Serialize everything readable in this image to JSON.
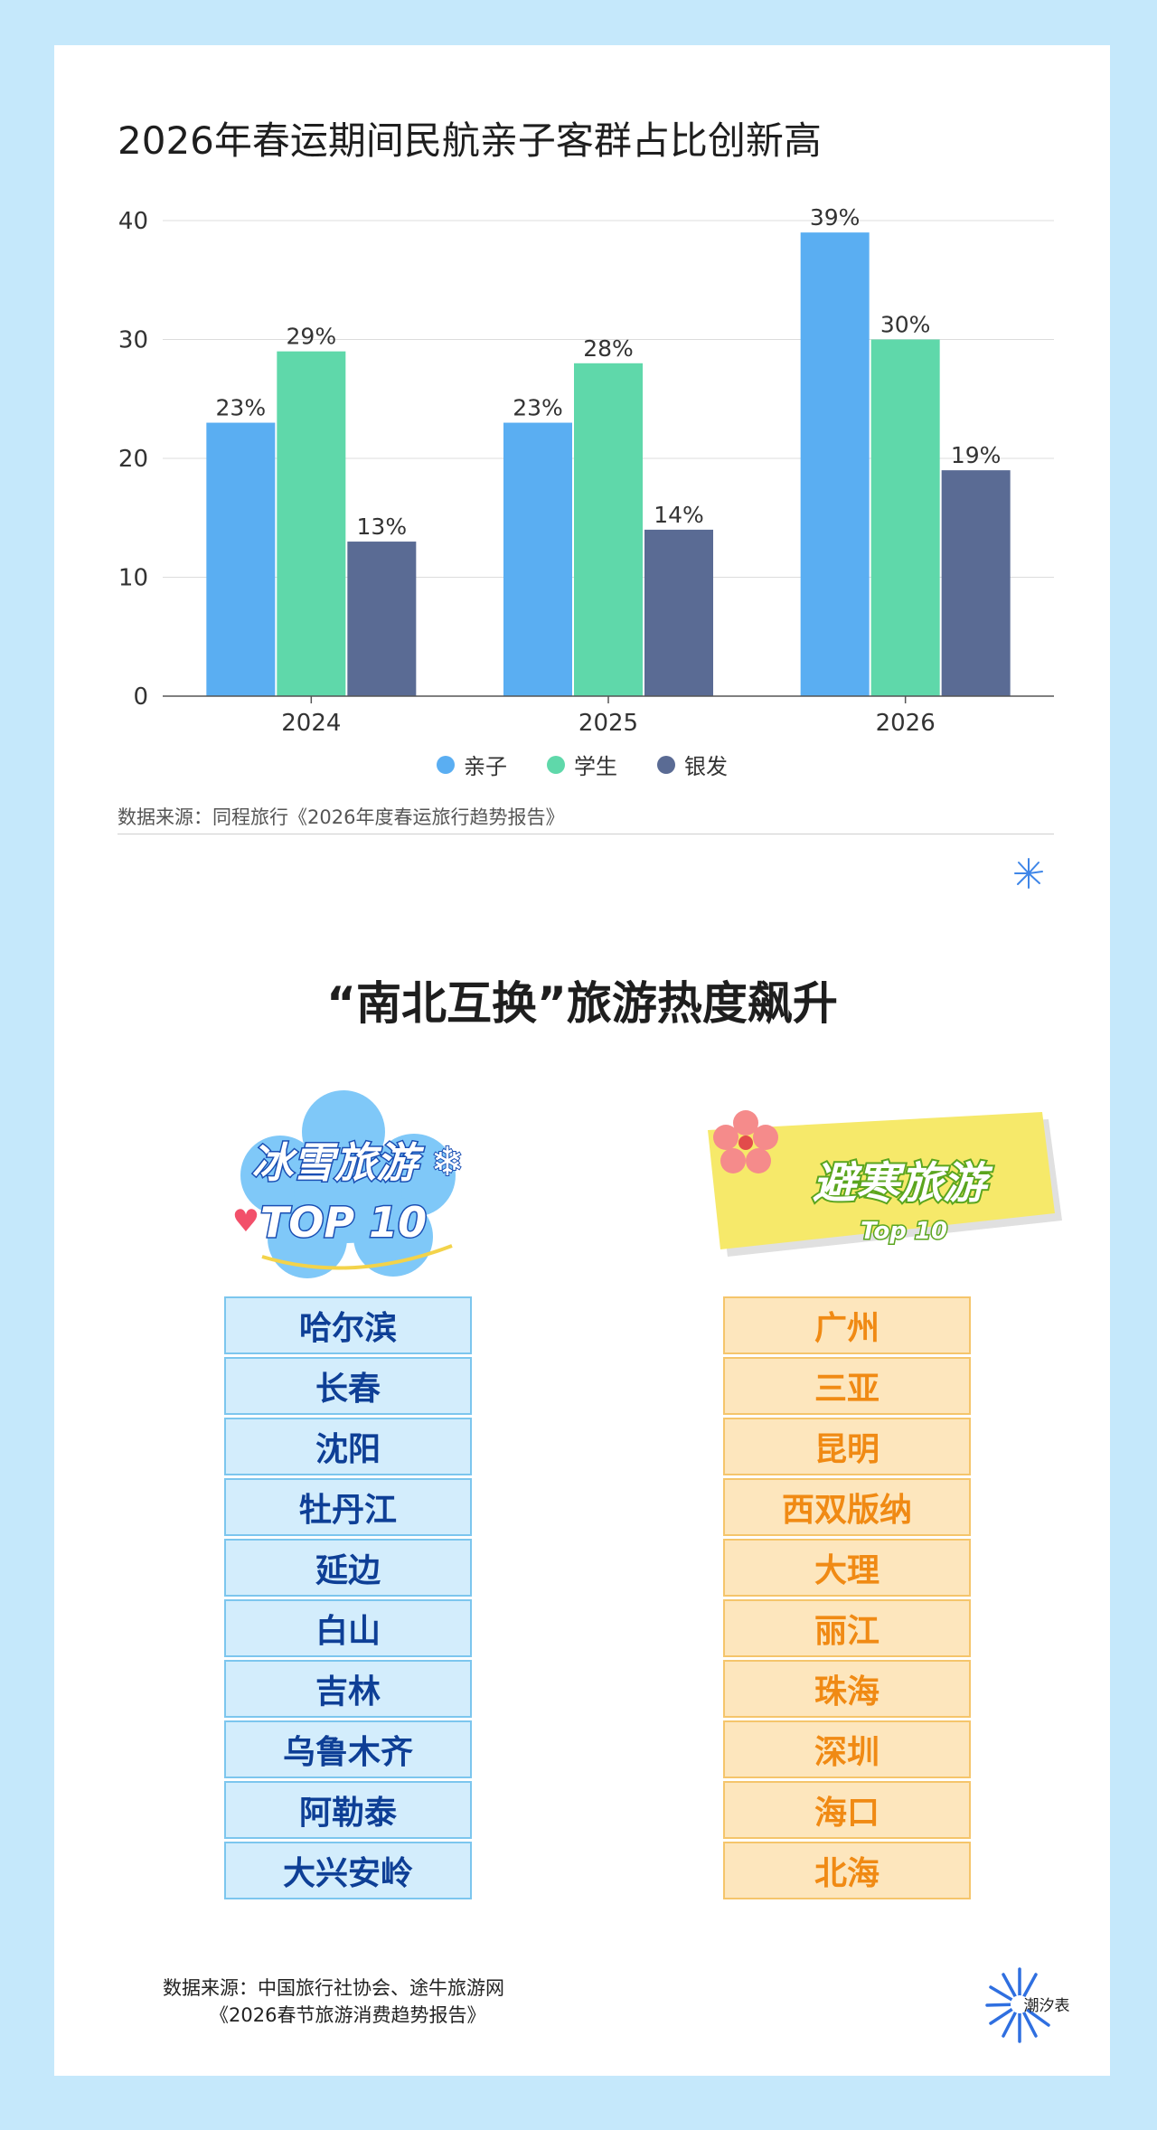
{
  "chart_data": {
    "type": "bar",
    "title": "2026年春运期间民航亲子客群占比创新高",
    "categories": [
      "2024",
      "2025",
      "2026"
    ],
    "series": [
      {
        "name": "亲子",
        "values": [
          23,
          23,
          39
        ],
        "labels": [
          "23%",
          "23%",
          "39%"
        ],
        "color": "#5aaef2"
      },
      {
        "name": "学生",
        "values": [
          29,
          28,
          30
        ],
        "labels": [
          "29%",
          "28%",
          "30%"
        ],
        "color": "#5fd8aa"
      },
      {
        "name": "银发",
        "values": [
          13,
          14,
          19
        ],
        "labels": [
          "13%",
          "14%",
          "19%"
        ],
        "color": "#5a6b94"
      }
    ],
    "ylim": [
      0,
      40
    ],
    "yticks": [
      0,
      10,
      20,
      30,
      40
    ],
    "grid": true,
    "legend": "bottom-center",
    "xlabel": "",
    "ylabel": ""
  },
  "chart_source": "数据来源：同程旅行《2026年度春运旅行趋势报告》",
  "section2": {
    "title": "“南北互换”旅游热度飙升",
    "cold": {
      "badge_line1": "冰雪旅游",
      "badge_line2": "TOP 10",
      "cities": [
        "哈尔滨",
        "长春",
        "沈阳",
        "牡丹江",
        "延边",
        "白山",
        "吉林",
        "乌鲁木齐",
        "阿勒泰",
        "大兴安岭"
      ]
    },
    "warm": {
      "badge_line1": "避寒旅游",
      "badge_line2": "Top 10",
      "cities": [
        "广州",
        "三亚",
        "昆明",
        "西双版纳",
        "大理",
        "丽江",
        "珠海",
        "深圳",
        "海口",
        "北海"
      ]
    },
    "source_line1": "数据来源：中国旅行社协会、途牛旅游网",
    "source_line2": "《2026春节旅游消费趋势报告》"
  },
  "brand": {
    "name": "潮汐表"
  },
  "colors": {
    "page_bg": "#c5e8fb",
    "cold_cell": "#d3edfc",
    "cold_text": "#0e3f96",
    "warm_cell": "#fde6bd",
    "warm_text": "#f08a14"
  }
}
